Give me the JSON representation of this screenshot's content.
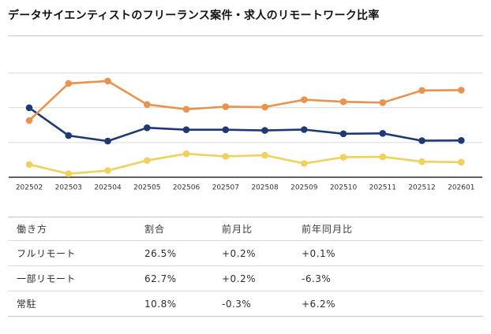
{
  "title": "データサイエンティストのフリーランス案件・求人のリモートワーク比率",
  "colors": {
    "partial_remote": "#E8944F",
    "full_remote": "#1E3A72",
    "onsite": "#F0D15E",
    "gridline": "#D9D9D9",
    "axis": "#2B2B2B",
    "tick_label": "#333333"
  },
  "chart_data": {
    "type": "line",
    "title": "",
    "xlabel": "",
    "ylabel": "",
    "x": [
      "202502",
      "202503",
      "202504",
      "202505",
      "202506",
      "202507",
      "202508",
      "202509",
      "202510",
      "202511",
      "202512",
      "202601"
    ],
    "series": [
      {
        "name": "一部リモート",
        "color": "#E8944F",
        "values": [
          40.8,
          67.5,
          69.2,
          52.3,
          48.9,
          50.8,
          50.5,
          55.8,
          54.3,
          53.7,
          62.5,
          62.7
        ]
      },
      {
        "name": "フルリモート",
        "color": "#1E3A72",
        "values": [
          50.0,
          30.0,
          26.0,
          35.6,
          34.2,
          34.2,
          33.7,
          34.3,
          31.3,
          31.6,
          26.3,
          26.5
        ]
      },
      {
        "name": "常駐",
        "color": "#F0D15E",
        "values": [
          9.2,
          2.5,
          4.8,
          12.1,
          16.9,
          15.0,
          15.8,
          9.9,
          14.4,
          14.7,
          11.2,
          10.8
        ]
      }
    ],
    "ylim": [
      0,
      100
    ],
    "gridlines_pct": [
      25,
      50,
      75
    ],
    "grid": true,
    "legend": "none"
  },
  "table": {
    "headers": [
      "働き方",
      "割合",
      "前月比",
      "前年同月比"
    ],
    "rows": [
      {
        "label": "フルリモート",
        "ratio": "26.5%",
        "mom": "+0.2%",
        "yoy": "+0.1%"
      },
      {
        "label": "一部リモート",
        "ratio": "62.7%",
        "mom": "+0.2%",
        "yoy": "-6.3%"
      },
      {
        "label": "常駐",
        "ratio": "10.8%",
        "mom": "-0.3%",
        "yoy": "+6.2%"
      }
    ]
  }
}
